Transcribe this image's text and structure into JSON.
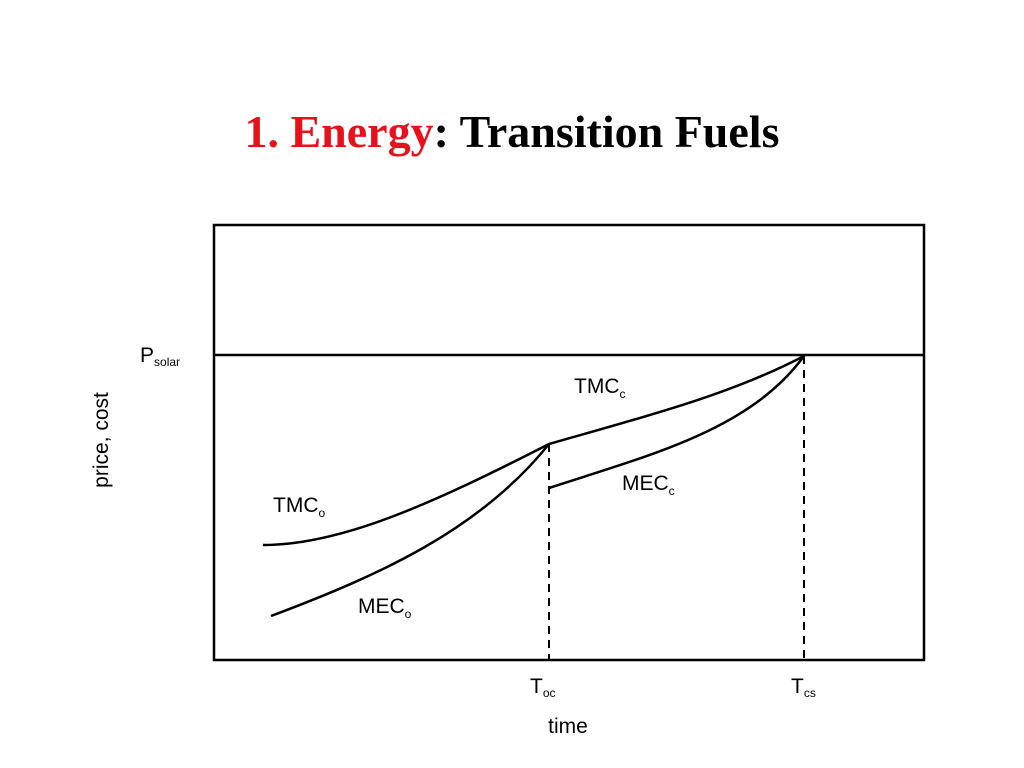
{
  "slide": {
    "title_number_topic": "1. Energy",
    "title_rest": ": Transition Fuels"
  },
  "diagram": {
    "y_axis_label": "price, cost",
    "x_axis_label": "time",
    "p_solar": {
      "main": "P",
      "sub": "solar"
    },
    "tmc_o": {
      "main": "TMC",
      "sub": "o"
    },
    "mec_o": {
      "main": "MEC",
      "sub": "o"
    },
    "tmc_c": {
      "main": "TMC",
      "sub": "c"
    },
    "mec_c": {
      "main": "MEC",
      "sub": "c"
    },
    "t_oc": {
      "main": "T",
      "sub": "oc"
    },
    "t_cs": {
      "main": "T",
      "sub": "cs"
    }
  },
  "colors": {
    "accent": "#e8101a",
    "ink": "#000000"
  }
}
